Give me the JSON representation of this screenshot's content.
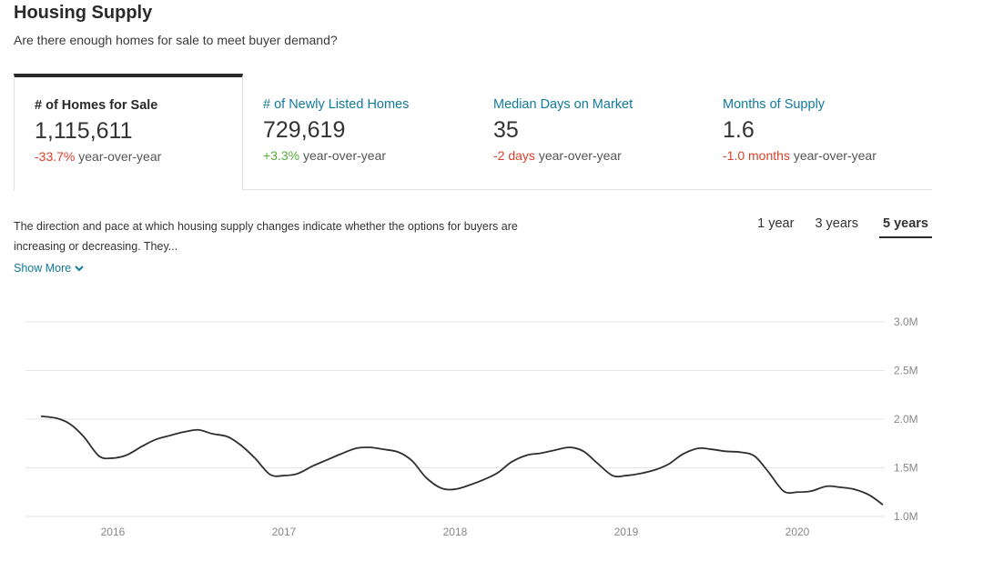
{
  "header": {
    "title": "Housing Supply",
    "subtitle": "Are there enough homes for sale to meet buyer demand?"
  },
  "stats": [
    {
      "label": "# of Homes for Sale",
      "value": "1,115,611",
      "change": "-33.7%",
      "change_suffix": "year-over-year",
      "trend": "neg"
    },
    {
      "label": "# of Newly Listed Homes",
      "value": "729,619",
      "change": "+3.3%",
      "change_suffix": "year-over-year",
      "trend": "pos"
    },
    {
      "label": "Median Days on Market",
      "value": "35",
      "change": "-2 days",
      "change_suffix": "year-over-year",
      "trend": "neg"
    },
    {
      "label": "Months of Supply",
      "value": "1.6",
      "change": "-1.0 months",
      "change_suffix": "year-over-year",
      "trend": "neg"
    }
  ],
  "description": {
    "text": "The direction and pace at which housing supply changes indicate whether the options for buyers are increasing or decreasing. They...",
    "show_more": "Show More"
  },
  "ranges": [
    {
      "label": "1 year",
      "active": false
    },
    {
      "label": "3 years",
      "active": false
    },
    {
      "label": "5 years",
      "active": true
    }
  ],
  "colors": {
    "line": "#2e2e2e",
    "grid": "#e6e6e6",
    "link": "#127a9c",
    "negative": "#d9402b",
    "positive": "#5aab3d"
  },
  "chart_data": {
    "type": "line",
    "title": "# of Homes for Sale",
    "xlabel": "",
    "ylabel": "",
    "y_ticks": [
      "1.0M",
      "1.5M",
      "2.0M",
      "2.5M",
      "3.0M"
    ],
    "y_tick_values": [
      1.0,
      1.5,
      2.0,
      2.5,
      3.0
    ],
    "ylim": [
      1.0,
      3.0
    ],
    "x_ticks": [
      "2016",
      "2017",
      "2018",
      "2019",
      "2020"
    ],
    "x_tick_values": [
      2016.0,
      2017.0,
      2018.0,
      2019.0,
      2020.0
    ],
    "xlim": [
      2015.58,
      2020.5
    ],
    "grid": true,
    "y_axis_side": "right",
    "series": [
      {
        "name": "# of Homes for Sale (M)",
        "x": [
          2015.58,
          2015.67,
          2015.75,
          2015.83,
          2015.92,
          2016.0,
          2016.08,
          2016.17,
          2016.25,
          2016.33,
          2016.42,
          2016.5,
          2016.58,
          2016.67,
          2016.75,
          2016.83,
          2016.92,
          2017.0,
          2017.08,
          2017.17,
          2017.25,
          2017.33,
          2017.42,
          2017.5,
          2017.58,
          2017.67,
          2017.75,
          2017.83,
          2017.92,
          2018.0,
          2018.08,
          2018.17,
          2018.25,
          2018.33,
          2018.42,
          2018.5,
          2018.58,
          2018.67,
          2018.75,
          2018.83,
          2018.92,
          2019.0,
          2019.08,
          2019.17,
          2019.25,
          2019.33,
          2019.42,
          2019.5,
          2019.58,
          2019.67,
          2019.75,
          2019.83,
          2019.92,
          2020.0,
          2020.08,
          2020.17,
          2020.25,
          2020.33,
          2020.42,
          2020.5
        ],
        "y": [
          2.03,
          2.01,
          1.95,
          1.82,
          1.62,
          1.6,
          1.63,
          1.72,
          1.79,
          1.83,
          1.87,
          1.89,
          1.85,
          1.82,
          1.73,
          1.6,
          1.43,
          1.42,
          1.44,
          1.52,
          1.58,
          1.64,
          1.7,
          1.71,
          1.69,
          1.66,
          1.57,
          1.4,
          1.29,
          1.28,
          1.32,
          1.38,
          1.45,
          1.56,
          1.63,
          1.65,
          1.68,
          1.71,
          1.67,
          1.55,
          1.42,
          1.42,
          1.44,
          1.48,
          1.54,
          1.64,
          1.7,
          1.69,
          1.67,
          1.66,
          1.62,
          1.46,
          1.26,
          1.25,
          1.26,
          1.31,
          1.3,
          1.28,
          1.22,
          1.12
        ]
      }
    ]
  }
}
